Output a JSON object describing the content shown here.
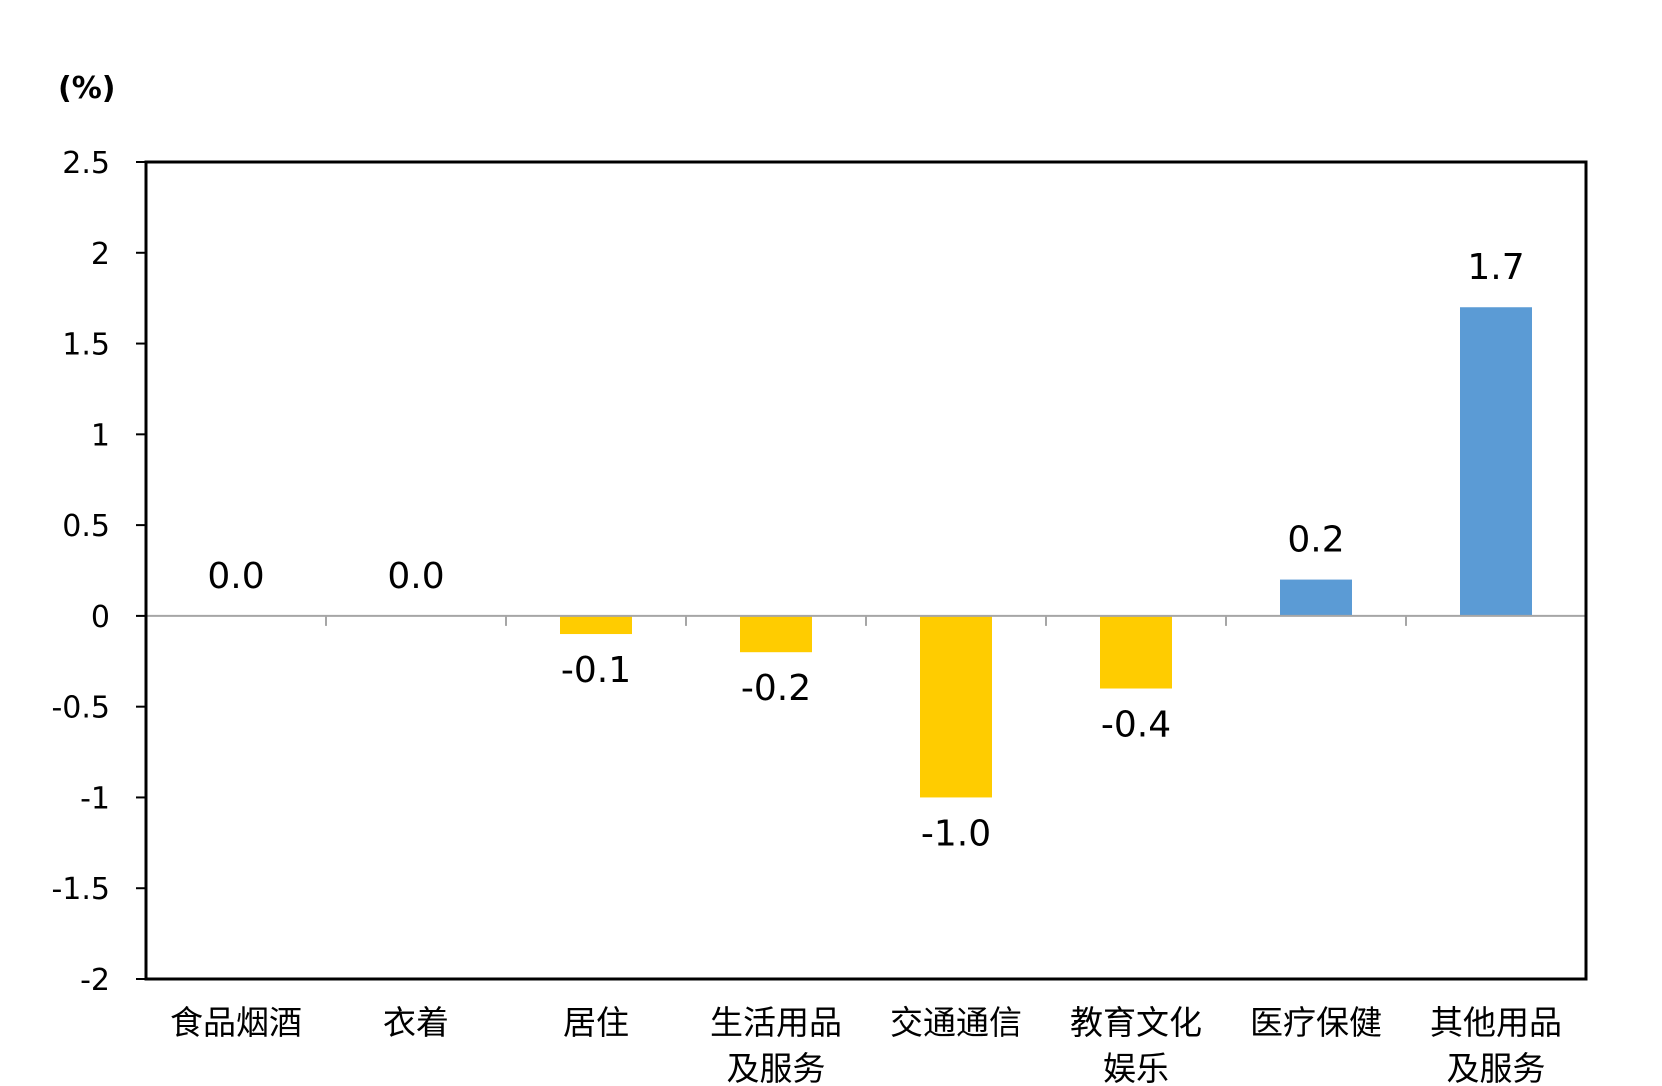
{
  "chart_data": {
    "type": "bar",
    "unit_label": "(%)",
    "categories": [
      [
        "食品烟酒"
      ],
      [
        "衣着"
      ],
      [
        "居住"
      ],
      [
        "生活用品",
        "及服务"
      ],
      [
        "交通通信"
      ],
      [
        "教育文化",
        "娱乐"
      ],
      [
        "医疗保健"
      ],
      [
        "其他用品",
        "及服务"
      ]
    ],
    "values": [
      0.0,
      0.0,
      -0.1,
      -0.2,
      -1.0,
      -0.4,
      0.2,
      1.7
    ],
    "value_labels": [
      "0.0",
      "0.0",
      "-0.1",
      "-0.2",
      "-1.0",
      "-0.4",
      "0.2",
      "1.7"
    ],
    "ylim": [
      -2,
      2.5
    ],
    "yticks": [
      "2.5",
      "2",
      "1.5",
      "1",
      "0.5",
      "0",
      "-0.5",
      "-1",
      "-1.5",
      "-2"
    ],
    "ytick_values": [
      2.5,
      2,
      1.5,
      1,
      0.5,
      0,
      -0.5,
      -1,
      -1.5,
      -2
    ],
    "colors": {
      "positive": "#5b9bd5",
      "negative": "#ffcc00",
      "axis": "#000000",
      "baseline": "#a6a6a6"
    },
    "grid": false,
    "legend": "none"
  }
}
